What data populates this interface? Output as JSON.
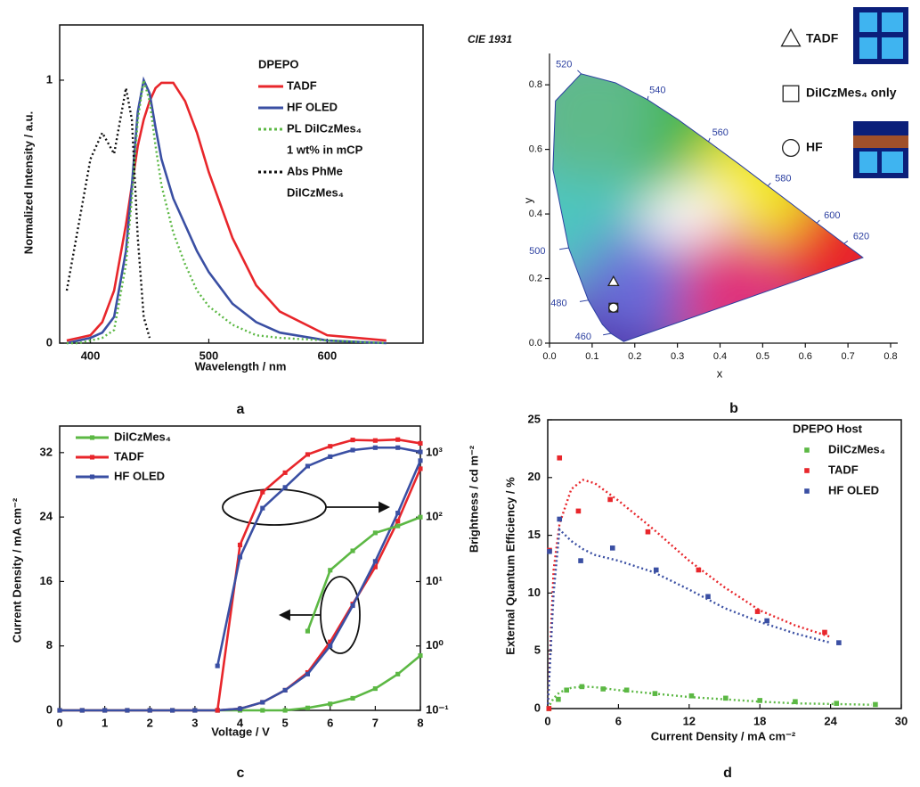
{
  "chart_data": [
    {
      "type": "line",
      "label": "a",
      "xlabel": "Wavelength / nm",
      "ylabel": "Normalized Intensity / a.u.",
      "frame": true,
      "xlim": [
        374,
        681
      ],
      "ylim": [
        0,
        1.21
      ],
      "xticks": [
        400,
        500,
        600
      ],
      "yticks": [
        0,
        1
      ],
      "legend_title": "DPEPO",
      "x": [
        380,
        390,
        400,
        410,
        420,
        430,
        435,
        440,
        445,
        450,
        455,
        460,
        470,
        480,
        490,
        500,
        520,
        540,
        560,
        600,
        650
      ],
      "series": [
        {
          "name": [
            "TADF"
          ],
          "color": "#e8262b",
          "linestyle": "solid",
          "values": [
            0.01,
            0.02,
            0.03,
            0.08,
            0.2,
            0.45,
            0.6,
            0.75,
            0.85,
            0.92,
            0.97,
            0.99,
            0.99,
            0.92,
            0.8,
            0.65,
            0.4,
            0.22,
            0.12,
            0.03,
            0.01
          ]
        },
        {
          "name": [
            "HF OLED"
          ],
          "color": "#3a4fa3",
          "linestyle": "solid",
          "values": [
            0,
            0.01,
            0.02,
            0.04,
            0.1,
            0.35,
            0.6,
            0.88,
            1.0,
            0.95,
            0.82,
            0.7,
            0.55,
            0.45,
            0.35,
            0.27,
            0.15,
            0.08,
            0.04,
            0.01,
            0
          ]
        },
        {
          "name": [
            "PL DiICzMes₄",
            "1 wt% in mCP"
          ],
          "color": "#5cb844",
          "linestyle": "dotted",
          "values": [
            0,
            0,
            0.01,
            0.02,
            0.05,
            0.3,
            0.55,
            0.85,
            1.0,
            0.92,
            0.75,
            0.6,
            0.42,
            0.3,
            0.2,
            0.14,
            0.07,
            0.03,
            0.02,
            0.01,
            0
          ]
        },
        {
          "name": [
            "Abs PhMe",
            "DiICzMes₄"
          ],
          "color": "#111111",
          "linestyle": "dotted",
          "values": [
            0.2,
            0.45,
            0.7,
            0.8,
            0.72,
            0.97,
            0.85,
            0.4,
            0.1,
            0.02,
            null,
            null,
            null,
            null,
            null,
            null,
            null,
            null,
            null,
            null,
            null
          ]
        }
      ]
    },
    {
      "type": "scatter",
      "label": "b",
      "title": "CIE 1931",
      "xlabel": "x",
      "ylabel": "y",
      "frame": false,
      "cie_gamut": true,
      "xlim": [
        0,
        0.8
      ],
      "ylim": [
        0,
        0.897
      ],
      "xticks": [
        {
          "value": 0,
          "label": "0.0"
        },
        0.1,
        0.2,
        0.3,
        0.4,
        0.5,
        0.6,
        0.7,
        0.8
      ],
      "yticks": [
        {
          "value": 0,
          "label": "0.0"
        },
        0.2,
        0.4,
        0.6,
        0.8
      ],
      "wavelength_labels": [
        460,
        480,
        500,
        520,
        540,
        560,
        580,
        600,
        620
      ],
      "series": [
        {
          "name": [
            "TADF"
          ],
          "marker": "triangle",
          "color": "#ffffff",
          "x": [
            0.15
          ],
          "values": [
            0.19
          ]
        },
        {
          "name": [
            "DiICzMes₄ only"
          ],
          "marker": "square",
          "color": "#ffffff",
          "x": [
            0.15
          ],
          "values": [
            0.11
          ]
        },
        {
          "name": [
            "HF"
          ],
          "marker": "circle",
          "color": "#ffffff",
          "x": [
            0.15
          ],
          "values": [
            0.11
          ]
        }
      ]
    },
    {
      "type": "line",
      "label": "c",
      "xlabel": "Voltage / V",
      "ylabel": "Current Density / mA cm⁻²",
      "y2label": "Brightness / cd m⁻²",
      "frame": true,
      "xlim": [
        0,
        8
      ],
      "ylim": [
        0,
        35.3
      ],
      "y2lim": [
        0.1,
        2600
      ],
      "y2log": true,
      "xticks": [
        0,
        1,
        2,
        3,
        4,
        5,
        6,
        7,
        8
      ],
      "yticks": [
        0,
        8,
        16,
        24,
        32
      ],
      "y2ticks": [
        {
          "value": 0.1,
          "label": "10⁻¹"
        },
        {
          "value": 1,
          "label": "10⁰"
        },
        {
          "value": 10,
          "label": "10¹"
        },
        {
          "value": 100,
          "label": "10²"
        },
        {
          "value": 1000,
          "label": "10³"
        }
      ],
      "x": [
        0,
        0.5,
        1,
        1.5,
        2,
        2.5,
        3,
        3.5,
        4,
        4.5,
        5,
        5.5,
        6,
        6.5,
        7,
        7.5,
        8
      ],
      "series": [
        {
          "name": [
            "DiICzMes₄"
          ],
          "color": "#5cb844",
          "marker": "square",
          "values": [
            0,
            0,
            0,
            0,
            0,
            0,
            0,
            0,
            0,
            0,
            0,
            0.3,
            0.8,
            1.5,
            2.7,
            4.5,
            6.8
          ]
        },
        {
          "name": [
            "TADF"
          ],
          "color": "#e8262b",
          "marker": "square",
          "values": [
            0,
            0,
            0,
            0,
            0,
            0,
            0,
            0,
            0.2,
            1,
            2.5,
            4.7,
            8.5,
            13.2,
            17.8,
            23.5,
            30
          ]
        },
        {
          "name": [
            "HF OLED"
          ],
          "color": "#3a4fa3",
          "marker": "square",
          "values": [
            0,
            0,
            0,
            0,
            0,
            0,
            0,
            0,
            0.2,
            1,
            2.5,
            4.5,
            8,
            13,
            18.5,
            24.5,
            31
          ]
        },
        {
          "axis": "y2",
          "color": "#5cb844",
          "marker": "square",
          "values": [
            null,
            null,
            null,
            null,
            null,
            null,
            null,
            null,
            null,
            null,
            null,
            1.7,
            15,
            30,
            57,
            73,
            100
          ]
        },
        {
          "axis": "y2",
          "color": "#e8262b",
          "marker": "square",
          "values": [
            null,
            null,
            null,
            null,
            null,
            null,
            null,
            0.1,
            37,
            245,
            490,
            940,
            1260,
            1580,
            1550,
            1600,
            1400
          ]
        },
        {
          "axis": "y2",
          "color": "#3a4fa3",
          "marker": "square",
          "values": [
            null,
            null,
            null,
            null,
            null,
            null,
            null,
            0.49,
            24,
            138,
            290,
            620,
            870,
            1100,
            1200,
            1200,
            1030
          ]
        }
      ]
    },
    {
      "type": "scatter",
      "label": "d",
      "xlabel": "Current Density / mA cm⁻²",
      "ylabel": "External Quantum Efficiency / %",
      "frame": true,
      "xlim": [
        0,
        30
      ],
      "ylim": [
        0,
        25
      ],
      "xticks": [
        0,
        6,
        12,
        18,
        24,
        30
      ],
      "yticks": [
        0,
        5,
        10,
        15,
        20,
        25
      ],
      "legend_title": "DPEPO Host",
      "series": [
        {
          "name": [
            "DiICzMes₄"
          ],
          "marker": "square",
          "color": "#5cb844",
          "x": [
            0.1,
            0.9,
            1.6,
            2.9,
            4.7,
            6.7,
            9.1,
            12.2,
            15.1,
            18,
            21,
            24.5,
            27.8
          ],
          "values": [
            0,
            0.8,
            1.6,
            1.9,
            1.7,
            1.6,
            1.3,
            1.1,
            0.9,
            0.7,
            0.6,
            0.45,
            0.35
          ]
        },
        {
          "name": [
            "TADF"
          ],
          "marker": "square",
          "color": "#e8262b",
          "x": [
            0.1,
            0.15,
            1,
            2.6,
            5.3,
            8.5,
            12.8,
            17.8,
            23.5
          ],
          "values": [
            0,
            13.7,
            21.7,
            17.1,
            18.1,
            15.3,
            12.0,
            8.4,
            6.6
          ]
        },
        {
          "name": [
            "HF OLED"
          ],
          "marker": "square",
          "color": "#3a4fa3",
          "x": [
            0.15,
            1,
            2.8,
            5.5,
            9.2,
            13.6,
            18.6,
            24.7
          ],
          "values": [
            13.6,
            16.4,
            12.8,
            13.9,
            12.0,
            9.7,
            7.6,
            5.7
          ]
        }
      ],
      "fit_x": [
        0,
        0.5,
        1,
        2,
        3,
        4,
        6,
        9,
        12,
        15,
        18,
        21,
        24,
        27.5
      ],
      "fits": [
        {
          "color": "#5cb844",
          "values": [
            0,
            0.9,
            1.4,
            1.8,
            1.9,
            1.85,
            1.6,
            1.3,
            1.0,
            0.8,
            0.6,
            0.45,
            0.4,
            0.33
          ]
        },
        {
          "color": "#e8262b",
          "values": [
            0,
            12,
            16,
            19,
            19.8,
            19.5,
            18,
            15.5,
            12.8,
            10.5,
            8.5,
            7.2,
            6.2,
            null
          ]
        },
        {
          "color": "#3a4fa3",
          "values": [
            0,
            10,
            15.5,
            14.5,
            13.8,
            13.3,
            12.8,
            11.8,
            10.3,
            8.7,
            7.5,
            6.5,
            5.7,
            null
          ]
        }
      ]
    }
  ]
}
